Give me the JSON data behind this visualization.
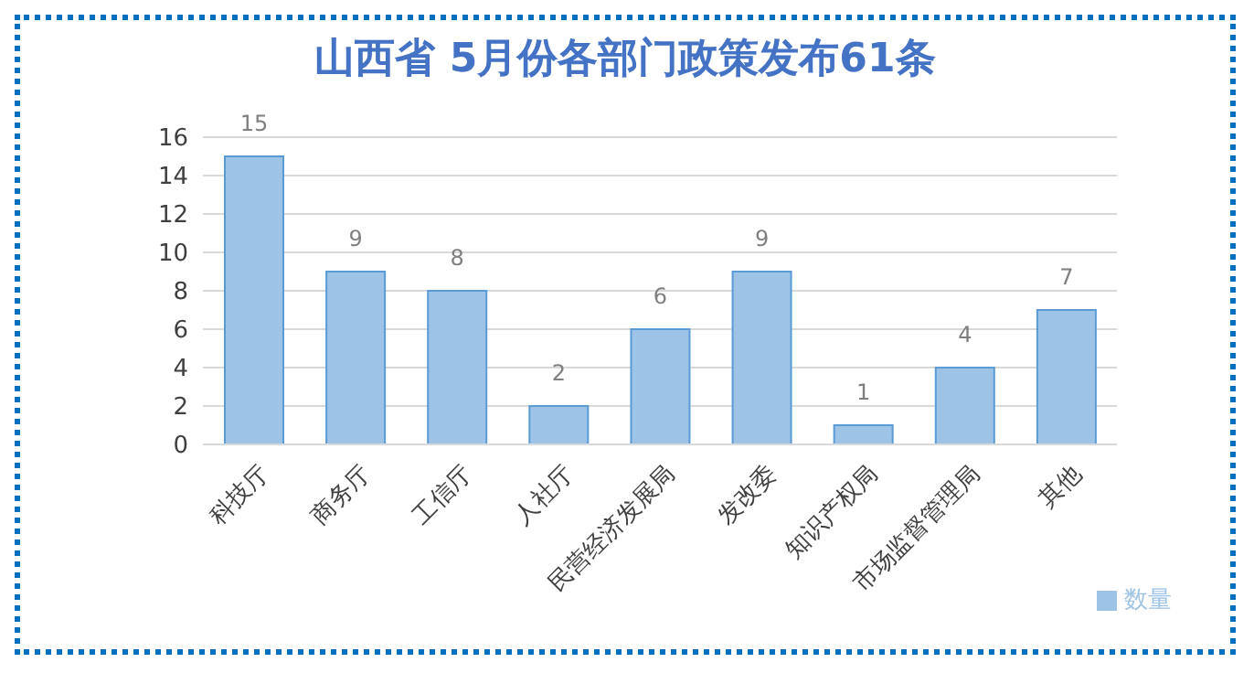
{
  "chart_data": {
    "type": "bar",
    "title": "山西省 5月份各部门政策发布61条",
    "categories": [
      "科技厅",
      "商务厅",
      "工信厅",
      "人社厅",
      "民营经济发展局",
      "发改委",
      "知识产权局",
      "市场监督管理局",
      "其他"
    ],
    "series": [
      {
        "name": "数量",
        "color": "#9dc3e6",
        "values": [
          15,
          9,
          8,
          2,
          6,
          9,
          1,
          4,
          7
        ]
      }
    ],
    "ylim": [
      0,
      16
    ],
    "yticks": [
      0,
      2,
      4,
      6,
      8,
      10,
      12,
      14,
      16
    ],
    "grid": "y",
    "legend": "bottom right",
    "data_labels": true
  }
}
